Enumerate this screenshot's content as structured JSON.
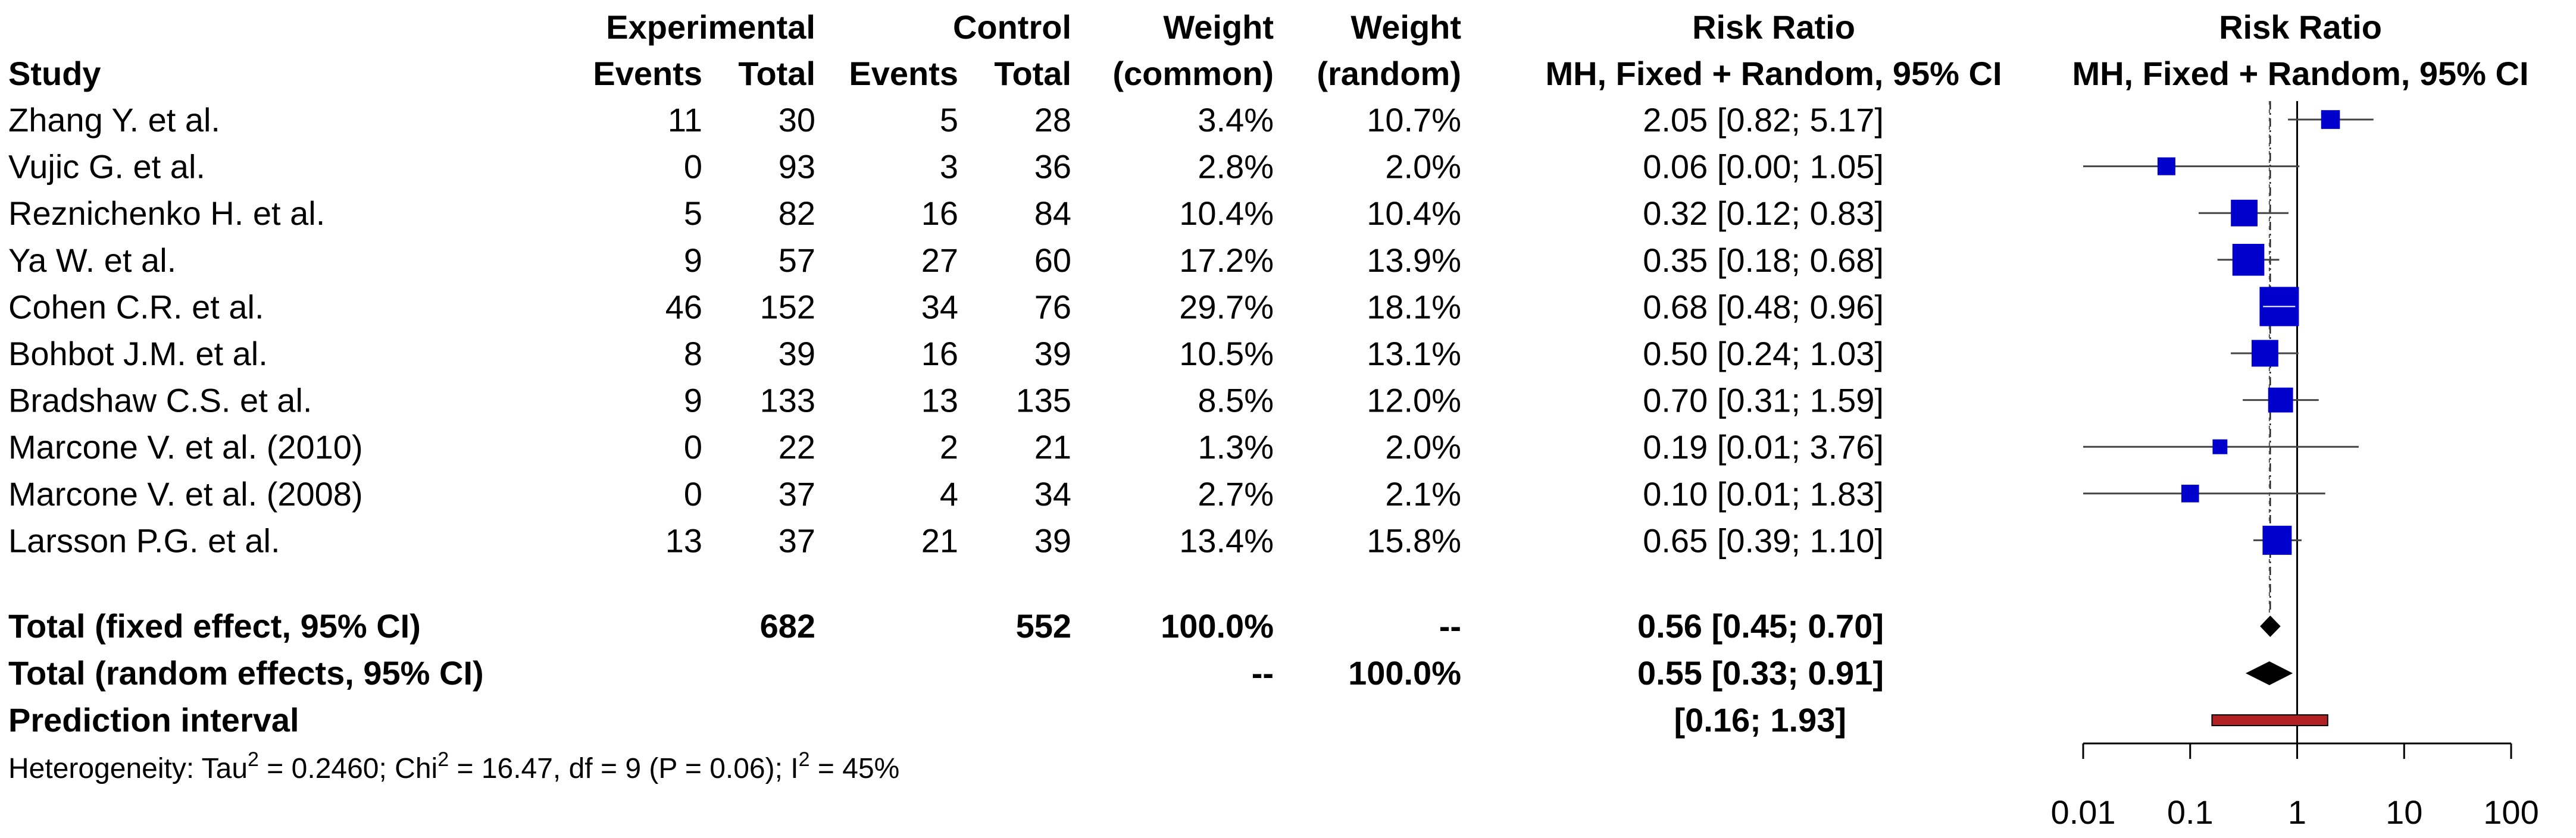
{
  "chart_data": {
    "type": "forest",
    "headers": {
      "study": "Study",
      "exp_group": "Experimental",
      "ctrl_group": "Control",
      "events": "Events",
      "total": "Total",
      "weight": "Weight",
      "weight_common": "(common)",
      "weight_random": "(random)",
      "rr": "Risk Ratio",
      "rr_method": "MH, Fixed + Random, 95% CI",
      "plot_title": "Risk Ratio",
      "plot_method": "MH, Fixed + Random, 95% CI"
    },
    "studies": [
      {
        "study": "Zhang Y. et al.",
        "exp_events": "11",
        "exp_total": "30",
        "ctrl_events": "5",
        "ctrl_total": "28",
        "w_common": "3.4%",
        "w_random": "10.7%",
        "ci_text": "2.05 [0.82; 5.17]",
        "rr": 2.05,
        "lower": 0.82,
        "upper": 5.17
      },
      {
        "study": "Vujic G. et al.",
        "exp_events": "0",
        "exp_total": "93",
        "ctrl_events": "3",
        "ctrl_total": "36",
        "w_common": "2.8%",
        "w_random": "2.0%",
        "ci_text": "0.06 [0.00; 1.05]",
        "rr": 0.06,
        "lower": 0.0,
        "upper": 1.05
      },
      {
        "study": "Reznichenko H. et al.",
        "exp_events": "5",
        "exp_total": "82",
        "ctrl_events": "16",
        "ctrl_total": "84",
        "w_common": "10.4%",
        "w_random": "10.4%",
        "ci_text": "0.32 [0.12; 0.83]",
        "rr": 0.32,
        "lower": 0.12,
        "upper": 0.83
      },
      {
        "study": "Ya W. et al.",
        "exp_events": "9",
        "exp_total": "57",
        "ctrl_events": "27",
        "ctrl_total": "60",
        "w_common": "17.2%",
        "w_random": "13.9%",
        "ci_text": "0.35 [0.18; 0.68]",
        "rr": 0.35,
        "lower": 0.18,
        "upper": 0.68
      },
      {
        "study": "Cohen C.R. et al.",
        "exp_events": "46",
        "exp_total": "152",
        "ctrl_events": "34",
        "ctrl_total": "76",
        "w_common": "29.7%",
        "w_random": "18.1%",
        "ci_text": "0.68 [0.48; 0.96]",
        "rr": 0.68,
        "lower": 0.48,
        "upper": 0.96
      },
      {
        "study": "Bohbot J.M. et al.",
        "exp_events": "8",
        "exp_total": "39",
        "ctrl_events": "16",
        "ctrl_total": "39",
        "w_common": "10.5%",
        "w_random": "13.1%",
        "ci_text": "0.50 [0.24; 1.03]",
        "rr": 0.5,
        "lower": 0.24,
        "upper": 1.03
      },
      {
        "study": "Bradshaw C.S. et al.",
        "exp_events": "9",
        "exp_total": "133",
        "ctrl_events": "13",
        "ctrl_total": "135",
        "w_common": "8.5%",
        "w_random": "12.0%",
        "ci_text": "0.70 [0.31; 1.59]",
        "rr": 0.7,
        "lower": 0.31,
        "upper": 1.59
      },
      {
        "study": "Marcone V. et al. (2010)",
        "exp_events": "0",
        "exp_total": "22",
        "ctrl_events": "2",
        "ctrl_total": "21",
        "w_common": "1.3%",
        "w_random": "2.0%",
        "ci_text": "0.19 [0.01; 3.76]",
        "rr": 0.19,
        "lower": 0.01,
        "upper": 3.76
      },
      {
        "study": "Marcone V. et al. (2008)",
        "exp_events": "0",
        "exp_total": "37",
        "ctrl_events": "4",
        "ctrl_total": "34",
        "w_common": "2.7%",
        "w_random": "2.1%",
        "ci_text": "0.10 [0.01; 1.83]",
        "rr": 0.1,
        "lower": 0.01,
        "upper": 1.83
      },
      {
        "study": "Larsson P.G. et al.",
        "exp_events": "13",
        "exp_total": "37",
        "ctrl_events": "21",
        "ctrl_total": "39",
        "w_common": "13.4%",
        "w_random": "15.8%",
        "ci_text": "0.65 [0.39; 1.10]",
        "rr": 0.65,
        "lower": 0.39,
        "upper": 1.1
      }
    ],
    "summary": {
      "fixed": {
        "label": "Total (fixed effect, 95% CI)",
        "exp_total": "682",
        "ctrl_total": "552",
        "w_common": "100.0%",
        "w_random": "--",
        "ci_text": "0.56 [0.45; 0.70]",
        "rr": 0.56,
        "lower": 0.45,
        "upper": 0.7
      },
      "random": {
        "label": "Total (random effects, 95% CI)",
        "w_common": "--",
        "w_random": "100.0%",
        "ci_text": "0.55 [0.33; 0.91]",
        "rr": 0.55,
        "lower": 0.33,
        "upper": 0.91
      },
      "prediction": {
        "label": "Prediction interval",
        "ci_text": "[0.16; 1.93]",
        "lower": 0.16,
        "upper": 1.93
      }
    },
    "heterogeneity": {
      "tau_label": "Heterogeneity: Tau",
      "sup2": "2",
      "tau_value": " = 0.2460; Chi",
      "chi_value": " = 16.47, df = 9 (P = 0.06); I",
      "i2_value": " = 45%"
    },
    "axis": {
      "scale": "log",
      "xlim": [
        0.01,
        100
      ],
      "ticks": [
        0.01,
        0.1,
        1,
        10,
        100
      ],
      "tick_labels": [
        "0.01",
        "0.1",
        "1",
        "10",
        "100"
      ],
      "null_value": 1
    },
    "colors": {
      "square": "#0000cc",
      "line": "#444444",
      "diamond": "#000000",
      "prediction": "#b22222",
      "inner_ci": "#ffffff"
    }
  }
}
